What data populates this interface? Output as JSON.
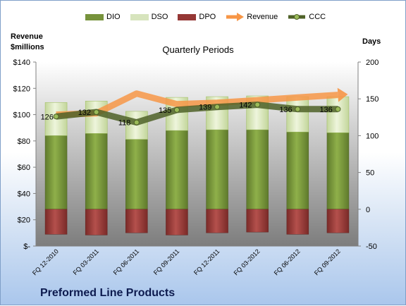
{
  "header": {
    "left_axis_unit_line1": "Revenue",
    "left_axis_unit_line2": "$millions",
    "right_axis_unit": "Days",
    "subtitle": "Quarterly Periods"
  },
  "footer": {
    "company": "Preformed Line Products"
  },
  "colors": {
    "dio": "#77933c",
    "dso": "#d7e4bd",
    "dpo": "#953735",
    "revenue": "#f79646",
    "ccc": "#4f6228"
  },
  "chart_data": {
    "type": "bar",
    "subtitle": "Quarterly Periods",
    "categories": [
      "FQ 12-2010",
      "FQ 03-2011",
      "FQ 06-2011",
      "FQ 09-2011",
      "FQ 12-2011",
      "FQ 03-2012",
      "FQ 06-2012",
      "FQ 09-2012"
    ],
    "left_axis": {
      "label": "Revenue $millions",
      "range": [
        0,
        140
      ],
      "ticks": [
        "$-",
        "$20",
        "$40",
        "$60",
        "$80",
        "$100",
        "$120",
        "$140"
      ]
    },
    "right_axis": {
      "label": "Days",
      "range": [
        -50,
        200
      ],
      "ticks": [
        "-50",
        "0",
        "50",
        "100",
        "150",
        "200"
      ]
    },
    "series": [
      {
        "name": "DIO",
        "kind": "stacked-bar",
        "axis": "right",
        "values": [
          100,
          103,
          95,
          107,
          108,
          108,
          105,
          104
        ]
      },
      {
        "name": "DSO",
        "kind": "stacked-bar",
        "axis": "right",
        "values": [
          45,
          44,
          38,
          45,
          45,
          46,
          48,
          49
        ]
      },
      {
        "name": "DPO",
        "kind": "negative-bar",
        "axis": "right",
        "values": [
          -34,
          -35,
          -32,
          -35,
          -32,
          -31,
          -34,
          -32
        ]
      },
      {
        "name": "Revenue",
        "kind": "arrow-line",
        "axis": "left",
        "values": [
          100,
          101,
          116,
          108,
          109,
          111,
          113,
          115
        ]
      },
      {
        "name": "CCC",
        "kind": "line",
        "axis": "right",
        "values": [
          126,
          132,
          118,
          135,
          139,
          142,
          136,
          136
        ],
        "labels": [
          "126",
          "132",
          "118",
          "135",
          "139",
          "142",
          "136",
          "136"
        ]
      }
    ],
    "legend": [
      "DIO",
      "DSO",
      "DPO",
      "Revenue",
      "CCC"
    ],
    "legend_position": "top",
    "grid": false
  }
}
